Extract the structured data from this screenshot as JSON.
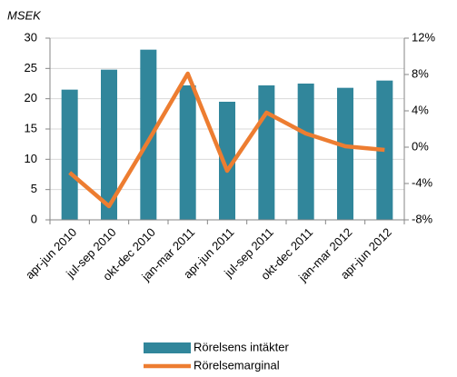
{
  "chart_data": {
    "type": "bar_line",
    "y_axis_label": "MSEK",
    "categories": [
      "apr-jun 2010",
      "jul-sep 2010",
      "okt-dec 2010",
      "jan-mar 2011",
      "apr-jun 2011",
      "jul-sep 2011",
      "okt-dec 2011",
      "jan-mar 2012",
      "apr-jun 2012"
    ],
    "series": [
      {
        "name": "Rörelsens intäkter",
        "type": "bar",
        "color": "#31869b",
        "values": [
          21.5,
          24.8,
          28.1,
          22.2,
          19.5,
          22.2,
          22.5,
          21.8,
          23.0
        ]
      },
      {
        "name": "Rörelsemarginal",
        "type": "line",
        "axis": "y2",
        "color": "#ed7d31",
        "values": [
          -2.8,
          -6.5,
          0.7,
          8.1,
          -2.6,
          3.8,
          1.5,
          0.1,
          -0.3
        ]
      }
    ],
    "ylim": [
      0,
      30
    ],
    "yticks": [
      0,
      5,
      10,
      15,
      20,
      25,
      30
    ],
    "y2lim": [
      -8,
      12
    ],
    "y2ticks": [
      {
        "value": -8,
        "label": "-8%"
      },
      {
        "value": -4,
        "label": "-4%"
      },
      {
        "value": 0,
        "label": "0%"
      },
      {
        "value": 4,
        "label": "4%"
      },
      {
        "value": 8,
        "label": "8%"
      },
      {
        "value": 12,
        "label": "12%"
      }
    ],
    "grid": true,
    "legend": "bottom"
  }
}
